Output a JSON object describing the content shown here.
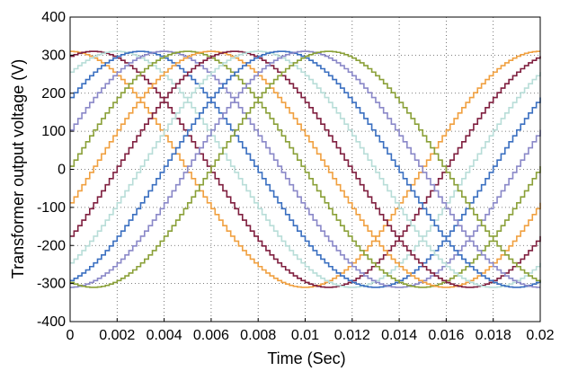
{
  "chart_data": {
    "type": "line",
    "xlabel": "Time (Sec)",
    "ylabel": "Transformer output voltage (V)",
    "xlim": [
      0,
      0.02
    ],
    "ylim": [
      -400,
      400
    ],
    "xticks": [
      "0",
      "0.002",
      "0.004",
      "0.006",
      "0.008",
      "0.01",
      "0.012",
      "0.014",
      "0.016",
      "0.018",
      "0.02"
    ],
    "yticks": [
      "400",
      "300",
      "200",
      "100",
      "0",
      "-100",
      "-200",
      "-300",
      "-400"
    ],
    "grid": "dotted",
    "legend": "none",
    "waveform": {
      "shape": "stepped sinusoid",
      "amplitude": 310,
      "frequency_hz": 50,
      "step_count_per_cycle": 120
    },
    "series": [
      {
        "phase_deg": 90,
        "color": "#f0a040"
      },
      {
        "phase_deg": 72,
        "color": "#7f1f3f"
      },
      {
        "phase_deg": 54,
        "color": "#b8ddd8"
      },
      {
        "phase_deg": 36,
        "color": "#3a6fc0"
      },
      {
        "phase_deg": 18,
        "color": "#8a88c8"
      },
      {
        "phase_deg": 0,
        "color": "#8aa038"
      },
      {
        "phase_deg": -18,
        "color": "#f0a040"
      },
      {
        "phase_deg": -36,
        "color": "#7f1f3f"
      },
      {
        "phase_deg": -54,
        "color": "#b8ddd8"
      },
      {
        "phase_deg": -72,
        "color": "#3a6fc0"
      },
      {
        "phase_deg": -90,
        "color": "#8a88c8"
      },
      {
        "phase_deg": -108,
        "color": "#8aa038"
      }
    ]
  }
}
